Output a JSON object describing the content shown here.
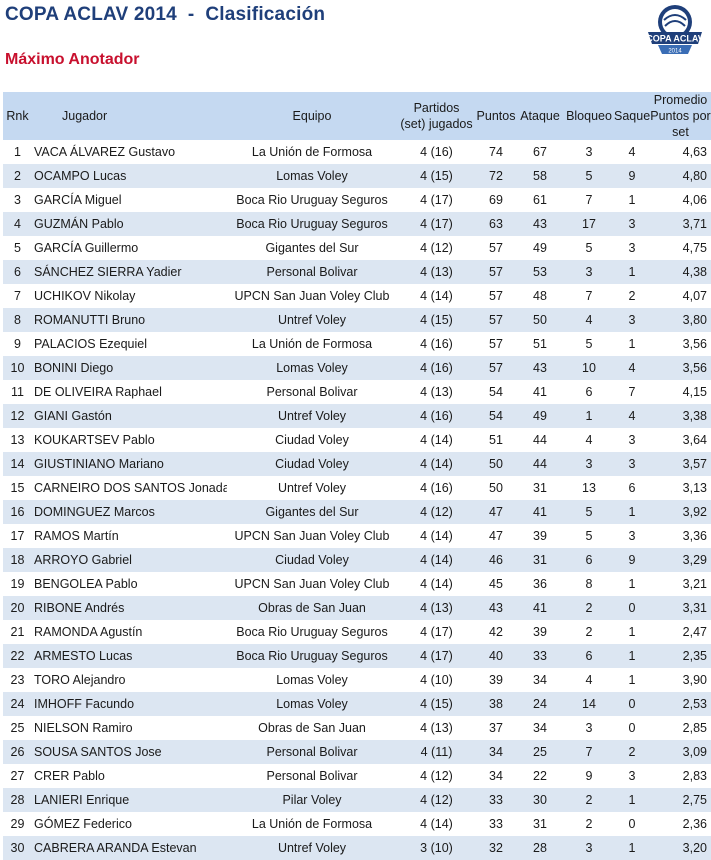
{
  "header": {
    "title": "COPA ACLAV 2014  -  Clasificación",
    "subtitle": "Máximo Anotador",
    "logo_text_top": "COPA ACLAV",
    "logo_text_bottom": "2014"
  },
  "colors": {
    "title": "#1f3f7a",
    "subtitle": "#c8102e",
    "header_bg": "#c5d9f1",
    "stripe": "#dce6f2"
  },
  "columns": {
    "rnk": "Rnk",
    "jugador": "Jugador",
    "equipo": "Equipo",
    "partidos_1": "Partidos",
    "partidos_2": "(set) jugados",
    "puntos": "Puntos",
    "ataque": "Ataque",
    "bloqueo": "Bloqueo",
    "saque": "Saque",
    "promedio_1": "Promedio",
    "promedio_2": "Puntos por set"
  },
  "rows": [
    {
      "rnk": "1",
      "jugador": "VACA ÁLVAREZ Gustavo",
      "equipo": "La Unión de Formosa",
      "partidos": "4 (16)",
      "puntos": "74",
      "ataque": "67",
      "bloqueo": "3",
      "saque": "4",
      "promedio": "4,63"
    },
    {
      "rnk": "2",
      "jugador": "OCAMPO Lucas",
      "equipo": "Lomas Voley",
      "partidos": "4 (15)",
      "puntos": "72",
      "ataque": "58",
      "bloqueo": "5",
      "saque": "9",
      "promedio": "4,80"
    },
    {
      "rnk": "3",
      "jugador": "GARCÍA Miguel",
      "equipo": "Boca Rio Uruguay Seguros",
      "partidos": "4 (17)",
      "puntos": "69",
      "ataque": "61",
      "bloqueo": "7",
      "saque": "1",
      "promedio": "4,06"
    },
    {
      "rnk": "4",
      "jugador": "GUZMÁN Pablo",
      "equipo": "Boca Rio Uruguay Seguros",
      "partidos": "4 (17)",
      "puntos": "63",
      "ataque": "43",
      "bloqueo": "17",
      "saque": "3",
      "promedio": "3,71"
    },
    {
      "rnk": "5",
      "jugador": "GARCÍA Guillermo",
      "equipo": "Gigantes del Sur",
      "partidos": "4 (12)",
      "puntos": "57",
      "ataque": "49",
      "bloqueo": "5",
      "saque": "3",
      "promedio": "4,75"
    },
    {
      "rnk": "6",
      "jugador": "SÁNCHEZ SIERRA Yadier",
      "equipo": "Personal Bolivar",
      "partidos": "4 (13)",
      "puntos": "57",
      "ataque": "53",
      "bloqueo": "3",
      "saque": "1",
      "promedio": "4,38"
    },
    {
      "rnk": "7",
      "jugador": "UCHIKOV Nikolay",
      "equipo": "UPCN San Juan Voley Club",
      "partidos": "4 (14)",
      "puntos": "57",
      "ataque": "48",
      "bloqueo": "7",
      "saque": "2",
      "promedio": "4,07"
    },
    {
      "rnk": "8",
      "jugador": "ROMANUTTI Bruno",
      "equipo": "Untref Voley",
      "partidos": "4 (15)",
      "puntos": "57",
      "ataque": "50",
      "bloqueo": "4",
      "saque": "3",
      "promedio": "3,80"
    },
    {
      "rnk": "9",
      "jugador": "PALACIOS Ezequiel",
      "equipo": "La Unión de Formosa",
      "partidos": "4 (16)",
      "puntos": "57",
      "ataque": "51",
      "bloqueo": "5",
      "saque": "1",
      "promedio": "3,56"
    },
    {
      "rnk": "10",
      "jugador": "BONINI Diego",
      "equipo": "Lomas Voley",
      "partidos": "4 (16)",
      "puntos": "57",
      "ataque": "43",
      "bloqueo": "10",
      "saque": "4",
      "promedio": "3,56"
    },
    {
      "rnk": "11",
      "jugador": "DE OLIVEIRA Raphael",
      "equipo": "Personal Bolivar",
      "partidos": "4 (13)",
      "puntos": "54",
      "ataque": "41",
      "bloqueo": "6",
      "saque": "7",
      "promedio": "4,15"
    },
    {
      "rnk": "12",
      "jugador": "GIANI Gastón",
      "equipo": "Untref Voley",
      "partidos": "4 (16)",
      "puntos": "54",
      "ataque": "49",
      "bloqueo": "1",
      "saque": "4",
      "promedio": "3,38"
    },
    {
      "rnk": "13",
      "jugador": "KOUKARTSEV Pablo",
      "equipo": "Ciudad Voley",
      "partidos": "4 (14)",
      "puntos": "51",
      "ataque": "44",
      "bloqueo": "4",
      "saque": "3",
      "promedio": "3,64"
    },
    {
      "rnk": "14",
      "jugador": "GIUSTINIANO Mariano",
      "equipo": "Ciudad Voley",
      "partidos": "4 (14)",
      "puntos": "50",
      "ataque": "44",
      "bloqueo": "3",
      "saque": "3",
      "promedio": "3,57"
    },
    {
      "rnk": "15",
      "jugador": "CARNEIRO DOS SANTOS Jonadabe",
      "equipo": "Untref Voley",
      "partidos": "4 (16)",
      "puntos": "50",
      "ataque": "31",
      "bloqueo": "13",
      "saque": "6",
      "promedio": "3,13"
    },
    {
      "rnk": "16",
      "jugador": "DOMINGUEZ Marcos",
      "equipo": "Gigantes del Sur",
      "partidos": "4 (12)",
      "puntos": "47",
      "ataque": "41",
      "bloqueo": "5",
      "saque": "1",
      "promedio": "3,92"
    },
    {
      "rnk": "17",
      "jugador": "RAMOS Martín",
      "equipo": "UPCN San Juan Voley Club",
      "partidos": "4 (14)",
      "puntos": "47",
      "ataque": "39",
      "bloqueo": "5",
      "saque": "3",
      "promedio": "3,36"
    },
    {
      "rnk": "18",
      "jugador": "ARROYO Gabriel",
      "equipo": "Ciudad Voley",
      "partidos": "4 (14)",
      "puntos": "46",
      "ataque": "31",
      "bloqueo": "6",
      "saque": "9",
      "promedio": "3,29"
    },
    {
      "rnk": "19",
      "jugador": "BENGOLEA Pablo",
      "equipo": "UPCN San Juan Voley Club",
      "partidos": "4 (14)",
      "puntos": "45",
      "ataque": "36",
      "bloqueo": "8",
      "saque": "1",
      "promedio": "3,21"
    },
    {
      "rnk": "20",
      "jugador": "RIBONE Andrés",
      "equipo": "Obras de San Juan",
      "partidos": "4 (13)",
      "puntos": "43",
      "ataque": "41",
      "bloqueo": "2",
      "saque": "0",
      "promedio": "3,31"
    },
    {
      "rnk": "21",
      "jugador": "RAMONDA Agustín",
      "equipo": "Boca Rio Uruguay Seguros",
      "partidos": "4 (17)",
      "puntos": "42",
      "ataque": "39",
      "bloqueo": "2",
      "saque": "1",
      "promedio": "2,47"
    },
    {
      "rnk": "22",
      "jugador": "ARMESTO Lucas",
      "equipo": "Boca Rio Uruguay Seguros",
      "partidos": "4 (17)",
      "puntos": "40",
      "ataque": "33",
      "bloqueo": "6",
      "saque": "1",
      "promedio": "2,35"
    },
    {
      "rnk": "23",
      "jugador": "TORO Alejandro",
      "equipo": "Lomas Voley",
      "partidos": "4 (10)",
      "puntos": "39",
      "ataque": "34",
      "bloqueo": "4",
      "saque": "1",
      "promedio": "3,90"
    },
    {
      "rnk": "24",
      "jugador": "IMHOFF Facundo",
      "equipo": "Lomas Voley",
      "partidos": "4 (15)",
      "puntos": "38",
      "ataque": "24",
      "bloqueo": "14",
      "saque": "0",
      "promedio": "2,53"
    },
    {
      "rnk": "25",
      "jugador": "NIELSON Ramiro",
      "equipo": "Obras de San Juan",
      "partidos": "4 (13)",
      "puntos": "37",
      "ataque": "34",
      "bloqueo": "3",
      "saque": "0",
      "promedio": "2,85"
    },
    {
      "rnk": "26",
      "jugador": "SOUSA SANTOS Jose",
      "equipo": "Personal Bolivar",
      "partidos": "4 (11)",
      "puntos": "34",
      "ataque": "25",
      "bloqueo": "7",
      "saque": "2",
      "promedio": "3,09"
    },
    {
      "rnk": "27",
      "jugador": "CRER Pablo",
      "equipo": "Personal Bolivar",
      "partidos": "4 (12)",
      "puntos": "34",
      "ataque": "22",
      "bloqueo": "9",
      "saque": "3",
      "promedio": "2,83"
    },
    {
      "rnk": "28",
      "jugador": "LANIERI Enrique",
      "equipo": "Pilar Voley",
      "partidos": "4 (12)",
      "puntos": "33",
      "ataque": "30",
      "bloqueo": "2",
      "saque": "1",
      "promedio": "2,75"
    },
    {
      "rnk": "29",
      "jugador": "GÓMEZ Federico",
      "equipo": "La Unión de Formosa",
      "partidos": "4 (14)",
      "puntos": "33",
      "ataque": "31",
      "bloqueo": "2",
      "saque": "0",
      "promedio": "2,36"
    },
    {
      "rnk": "30",
      "jugador": "CABRERA ARANDA Estevan",
      "equipo": "Untref Voley",
      "partidos": "3 (10)",
      "puntos": "32",
      "ataque": "28",
      "bloqueo": "3",
      "saque": "1",
      "promedio": "3,20"
    }
  ]
}
